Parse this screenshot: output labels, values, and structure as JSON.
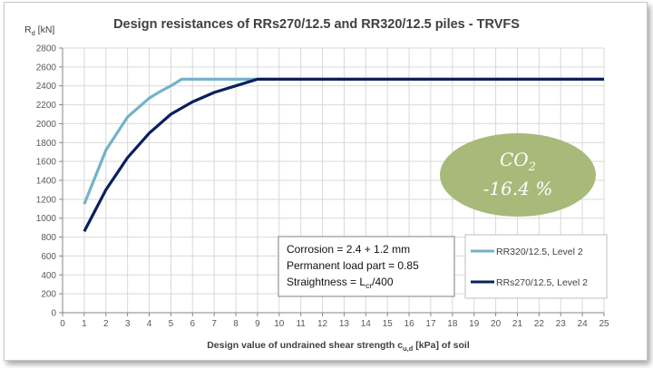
{
  "chart_data": {
    "type": "line",
    "title": "Design resistances of RRs270/12.5 and RR320/12.5 piles - TRVFS",
    "ylabel_main": "R",
    "ylabel_sub": "d",
    "ylabel_unit": " [kN]",
    "xlabel_pre": "Design value of undrained shear strength c",
    "xlabel_sub": "u,d",
    "xlabel_post": " [kPa]  of soil",
    "xlim": [
      0,
      25
    ],
    "ylim": [
      0,
      2800
    ],
    "x_ticks": [
      0,
      1,
      2,
      3,
      4,
      5,
      6,
      7,
      8,
      9,
      10,
      11,
      12,
      13,
      14,
      15,
      16,
      17,
      18,
      19,
      20,
      21,
      22,
      23,
      24,
      25
    ],
    "y_ticks": [
      0,
      200,
      400,
      600,
      800,
      1000,
      1200,
      1400,
      1600,
      1800,
      2000,
      2200,
      2400,
      2600,
      2800
    ],
    "grid": true,
    "legend_position": "bottom-right",
    "series": [
      {
        "name": "RR320/12.5, Level 2",
        "color": "#73b3c9",
        "points": [
          [
            1,
            1150
          ],
          [
            2,
            1720
          ],
          [
            3,
            2070
          ],
          [
            4,
            2270
          ],
          [
            4.5,
            2340
          ],
          [
            5,
            2400
          ],
          [
            5.5,
            2470
          ],
          [
            6,
            2470
          ],
          [
            7,
            2470
          ],
          [
            8,
            2470
          ],
          [
            9,
            2470
          ],
          [
            25,
            2470
          ]
        ]
      },
      {
        "name": "RRs270/12.5, Level 2",
        "color": "#0a1f5c",
        "points": [
          [
            1,
            860
          ],
          [
            2,
            1300
          ],
          [
            3,
            1640
          ],
          [
            4,
            1900
          ],
          [
            5,
            2100
          ],
          [
            6,
            2230
          ],
          [
            7,
            2330
          ],
          [
            8,
            2400
          ],
          [
            9,
            2470
          ],
          [
            25,
            2470
          ]
        ]
      }
    ],
    "annotation": {
      "lines": [
        {
          "pre": "Corrosion = 2.4 + 1.2 mm",
          "sub": "",
          "post": ""
        },
        {
          "pre": "Permanent load part = 0.85",
          "sub": "",
          "post": ""
        },
        {
          "pre": "Straightness = L",
          "sub": "cr",
          "post": "/400"
        }
      ]
    },
    "badge": {
      "line1_main": "CO",
      "line1_sub": "2",
      "line2": "-16.4 %",
      "color": "#a9b97a"
    }
  }
}
